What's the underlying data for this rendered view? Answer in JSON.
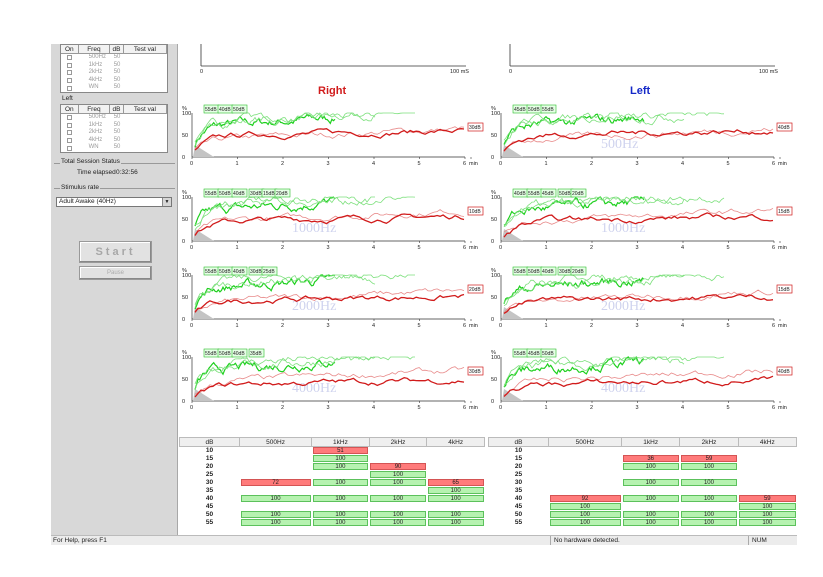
{
  "sidebar": {
    "right_ear_label": "On Freq dB Test val",
    "header": {
      "on": "On",
      "freq": "Freq",
      "db": "dB",
      "test": "Test val"
    },
    "left_ear_title": "Left",
    "rows": [
      {
        "freq": "500Hz",
        "db": "50"
      },
      {
        "freq": "1kHz",
        "db": "50"
      },
      {
        "freq": "2kHz",
        "db": "50"
      },
      {
        "freq": "4kHz",
        "db": "50"
      },
      {
        "freq": "WN",
        "db": "50"
      }
    ],
    "session_title": "Total Session Status",
    "time_label": "Time elapsed",
    "time_value": "0:32:56",
    "stim_title": "Stimulus rate",
    "stim_value": "Adult Awake (40Hz)",
    "start_label": "Start",
    "pause_label": "Pause"
  },
  "ears": {
    "right": "Right",
    "left": "Left"
  },
  "colors": {
    "right": "#d11b1b",
    "left": "#1428c8",
    "bright_green": "#1ed01e",
    "light_green": "#7de07d",
    "pink": "#e88a8a"
  },
  "top_axis": {
    "start": "0",
    "end": "100 mS"
  },
  "panels": {
    "right": [
      {
        "wm": "",
        "end_label": "30dB",
        "tags": [
          "55dB",
          "40dB",
          "50dB"
        ],
        "ticks": [
          "0",
          "1",
          "2",
          "3",
          "4",
          "5",
          "6",
          "min"
        ]
      },
      {
        "wm": "1000Hz",
        "end_label": "10dB",
        "tags": [
          "55dB",
          "50dB",
          "40dB",
          "30dB",
          "15dB",
          "20dB"
        ],
        "ticks": [
          "0",
          "1",
          "2",
          "3",
          "4",
          "5",
          "6",
          "min"
        ]
      },
      {
        "wm": "2000Hz",
        "end_label": "20dB",
        "tags": [
          "55dB",
          "50dB",
          "40dB",
          "30dB",
          "25dB"
        ],
        "ticks": [
          "0",
          "1",
          "2",
          "3",
          "4",
          "5",
          "6",
          "min"
        ]
      },
      {
        "wm": "4000Hz",
        "end_label": "30dB",
        "tags": [
          "55dB",
          "50dB",
          "40dB",
          "35dB"
        ],
        "ticks": [
          "0",
          "1",
          "2",
          "3",
          "4",
          "5",
          "6",
          "min"
        ]
      }
    ],
    "left": [
      {
        "wm": "500Hz",
        "end_label": "40dB",
        "tags": [
          "45dB",
          "50dB",
          "55dB"
        ],
        "ticks": [
          "0",
          "1",
          "2",
          "3",
          "4",
          "5",
          "6",
          "min"
        ]
      },
      {
        "wm": "1000Hz",
        "end_label": "15dB",
        "tags": [
          "40dB",
          "55dB",
          "45dB",
          "50dB",
          "20dB"
        ],
        "ticks": [
          "0",
          "1",
          "2",
          "3",
          "4",
          "5",
          "6",
          "min"
        ]
      },
      {
        "wm": "2000Hz",
        "end_label": "15dB",
        "tags": [
          "55dB",
          "50dB",
          "40dB",
          "30dB",
          "20dB"
        ],
        "ticks": [
          "0",
          "1",
          "2",
          "3",
          "4",
          "5",
          "6",
          "min"
        ]
      },
      {
        "wm": "4000Hz",
        "end_label": "40dB",
        "tags": [
          "55dB",
          "45dB",
          "50dB"
        ],
        "ticks": [
          "0",
          "1",
          "2",
          "3",
          "4",
          "5",
          "6",
          "min"
        ]
      }
    ],
    "y_ticks": [
      "100",
      "50",
      "0"
    ],
    "y_unit": "%"
  },
  "tables": {
    "headers": [
      "dB",
      "500Hz",
      "1kHz",
      "2kHz",
      "4kHz"
    ],
    "db_levels": [
      "10",
      "15",
      "20",
      "25",
      "30",
      "35",
      "40",
      "45",
      "50",
      "55"
    ],
    "right": [
      [
        null,
        {
          "v": "51",
          "c": "r"
        },
        null,
        null
      ],
      [
        null,
        {
          "v": "100",
          "c": "g"
        },
        null,
        null
      ],
      [
        null,
        {
          "v": "100",
          "c": "g"
        },
        {
          "v": "90",
          "c": "r"
        },
        null
      ],
      [
        null,
        null,
        {
          "v": "100",
          "c": "g"
        },
        null
      ],
      [
        {
          "v": "72",
          "c": "r"
        },
        {
          "v": "100",
          "c": "g"
        },
        {
          "v": "100",
          "c": "g"
        },
        {
          "v": "65",
          "c": "r"
        }
      ],
      [
        null,
        null,
        null,
        {
          "v": "100",
          "c": "g"
        }
      ],
      [
        {
          "v": "100",
          "c": "g"
        },
        {
          "v": "100",
          "c": "g"
        },
        {
          "v": "100",
          "c": "g"
        },
        {
          "v": "100",
          "c": "g"
        }
      ],
      [
        null,
        null,
        null,
        null
      ],
      [
        {
          "v": "100",
          "c": "g"
        },
        {
          "v": "100",
          "c": "g"
        },
        {
          "v": "100",
          "c": "g"
        },
        {
          "v": "100",
          "c": "g"
        }
      ],
      [
        {
          "v": "100",
          "c": "g"
        },
        {
          "v": "100",
          "c": "g"
        },
        {
          "v": "100",
          "c": "g"
        },
        {
          "v": "100",
          "c": "g"
        }
      ]
    ],
    "left": [
      [
        null,
        null,
        null,
        null
      ],
      [
        null,
        {
          "v": "36",
          "c": "r"
        },
        {
          "v": "59",
          "c": "r"
        },
        null
      ],
      [
        null,
        {
          "v": "100",
          "c": "g"
        },
        {
          "v": "100",
          "c": "g"
        },
        null
      ],
      [
        null,
        null,
        null,
        null
      ],
      [
        null,
        {
          "v": "100",
          "c": "g"
        },
        {
          "v": "100",
          "c": "g"
        },
        null
      ],
      [
        null,
        null,
        null,
        null
      ],
      [
        {
          "v": "92",
          "c": "r"
        },
        {
          "v": "100",
          "c": "g"
        },
        {
          "v": "100",
          "c": "g"
        },
        {
          "v": "59",
          "c": "r"
        }
      ],
      [
        {
          "v": "100",
          "c": "g"
        },
        null,
        null,
        {
          "v": "100",
          "c": "g"
        }
      ],
      [
        {
          "v": "100",
          "c": "g"
        },
        {
          "v": "100",
          "c": "g"
        },
        {
          "v": "100",
          "c": "g"
        },
        {
          "v": "100",
          "c": "g"
        }
      ],
      [
        {
          "v": "100",
          "c": "g"
        },
        {
          "v": "100",
          "c": "g"
        },
        {
          "v": "100",
          "c": "g"
        },
        {
          "v": "100",
          "c": "g"
        }
      ]
    ]
  },
  "status": {
    "help": "For Help, press F1",
    "hardware": "No hardware detected.",
    "num": "NUM"
  }
}
